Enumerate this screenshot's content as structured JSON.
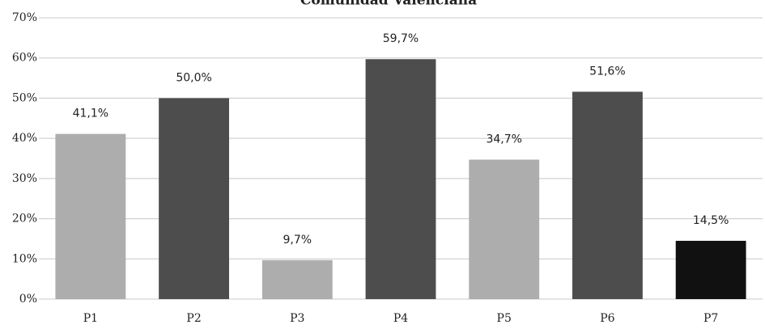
{
  "chart_data": {
    "type": "bar",
    "title": "Comunidad Valenciana",
    "categories": [
      "P1",
      "P2",
      "P3",
      "P4",
      "P5",
      "P6",
      "P7"
    ],
    "values": [
      41.1,
      50.0,
      9.7,
      59.7,
      34.7,
      51.6,
      14.5
    ],
    "value_labels": [
      "41,1%",
      "50,0%",
      "9,7%",
      "59,7%",
      "34,7%",
      "51,6%",
      "14,5%"
    ],
    "colors": [
      "#adadad",
      "#4d4d4d",
      "#adadad",
      "#4d4d4d",
      "#adadad",
      "#4d4d4d",
      "#111111"
    ],
    "ylim": [
      0,
      70
    ],
    "yticks": [
      {
        "value": 0,
        "label": "0%"
      },
      {
        "value": 10,
        "label": "10%"
      },
      {
        "value": 20,
        "label": "20%"
      },
      {
        "value": 30,
        "label": "30%"
      },
      {
        "value": 40,
        "label": "40%"
      },
      {
        "value": 50,
        "label": "50%"
      },
      {
        "value": 60,
        "label": "60%"
      },
      {
        "value": 70,
        "label": "70%"
      }
    ],
    "grid": true
  }
}
